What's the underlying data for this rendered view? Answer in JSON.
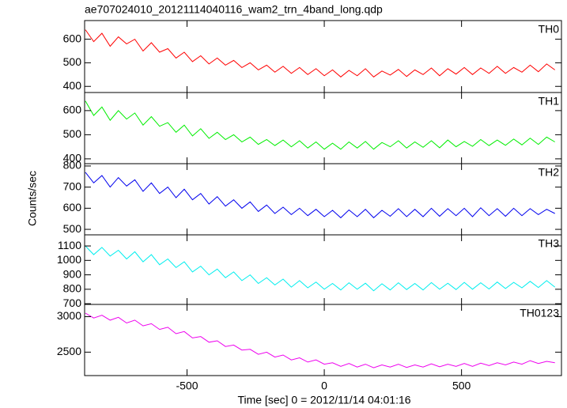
{
  "chart_data": {
    "type": "line",
    "title": "ae707024010_20121114040116_wam2_trn_4band_long.qdp",
    "x_label": "Time [sec] 0 = 2012/11/14 04:01:16",
    "y_label": "Counts/sec",
    "xlim": [
      -873,
      864
    ],
    "xticks": [
      -500,
      0,
      500
    ],
    "x": [
      -870,
      -840,
      -810,
      -780,
      -750,
      -720,
      -690,
      -660,
      -630,
      -600,
      -570,
      -540,
      -510,
      -480,
      -450,
      -420,
      -390,
      -360,
      -330,
      -300,
      -270,
      -240,
      -210,
      -180,
      -150,
      -120,
      -90,
      -60,
      -30,
      0,
      30,
      60,
      90,
      120,
      150,
      180,
      210,
      240,
      270,
      300,
      330,
      360,
      390,
      420,
      450,
      480,
      510,
      540,
      570,
      600,
      630,
      660,
      690,
      720,
      750,
      780,
      810,
      840
    ],
    "series": [
      {
        "name": "TH0",
        "color": "#ff0000",
        "ylim": [
          374,
          679
        ],
        "yticks": [
          400,
          500,
          600
        ],
        "values": [
          640,
          590,
          625,
          570,
          610,
          580,
          600,
          550,
          585,
          545,
          560,
          520,
          545,
          505,
          530,
          495,
          520,
          490,
          510,
          480,
          500,
          470,
          490,
          460,
          485,
          455,
          480,
          450,
          475,
          445,
          470,
          440,
          468,
          445,
          475,
          440,
          465,
          448,
          472,
          442,
          470,
          450,
          478,
          445,
          475,
          452,
          480,
          450,
          478,
          455,
          485,
          455,
          480,
          460,
          490,
          462,
          495,
          470
        ]
      },
      {
        "name": "TH1",
        "color": "#00ee00",
        "ylim": [
          380,
          675
        ],
        "yticks": [
          400,
          500,
          600
        ],
        "values": [
          640,
          580,
          615,
          560,
          600,
          565,
          590,
          540,
          575,
          535,
          550,
          510,
          540,
          495,
          525,
          485,
          510,
          480,
          500,
          470,
          490,
          460,
          480,
          455,
          478,
          450,
          475,
          445,
          470,
          440,
          465,
          440,
          470,
          445,
          472,
          440,
          468,
          450,
          475,
          445,
          470,
          448,
          475,
          446,
          478,
          450,
          472,
          452,
          480,
          455,
          478,
          456,
          482,
          458,
          486,
          460,
          490,
          470
        ]
      },
      {
        "name": "TH2",
        "color": "#0000ee",
        "ylim": [
          474,
          811
        ],
        "yticks": [
          500,
          600,
          700,
          800
        ],
        "values": [
          770,
          720,
          755,
          700,
          745,
          705,
          735,
          680,
          720,
          670,
          700,
          650,
          690,
          640,
          670,
          620,
          655,
          610,
          640,
          600,
          630,
          585,
          615,
          575,
          605,
          570,
          600,
          565,
          595,
          560,
          590,
          555,
          592,
          560,
          595,
          555,
          590,
          562,
          598,
          560,
          595,
          560,
          600,
          562,
          598,
          565,
          600,
          560,
          602,
          565,
          598,
          562,
          600,
          565,
          598,
          570,
          595,
          575
        ]
      },
      {
        "name": "TH3",
        "color": "#00eeee",
        "ylim": [
          695,
          1177
        ],
        "yticks": [
          700,
          800,
          900,
          1000,
          1100
        ],
        "values": [
          1100,
          1040,
          1090,
          1030,
          1070,
          1010,
          1060,
          990,
          1040,
          970,
          1010,
          950,
          990,
          920,
          960,
          900,
          940,
          880,
          920,
          860,
          900,
          840,
          880,
          830,
          870,
          815,
          860,
          810,
          850,
          800,
          840,
          795,
          845,
          800,
          842,
          790,
          838,
          795,
          845,
          798,
          840,
          795,
          846,
          800,
          842,
          798,
          848,
          800,
          845,
          802,
          850,
          805,
          848,
          810,
          855,
          812,
          860,
          815
        ]
      },
      {
        "name": "TH0123",
        "color": "#ee00ee",
        "ylim": [
          2170,
          3172
        ],
        "yticks": [
          2500,
          3000
        ],
        "values": [
          3050,
          2980,
          3020,
          2950,
          2990,
          2910,
          2950,
          2870,
          2900,
          2820,
          2850,
          2760,
          2790,
          2700,
          2720,
          2640,
          2660,
          2580,
          2600,
          2530,
          2540,
          2470,
          2500,
          2430,
          2460,
          2390,
          2420,
          2360,
          2390,
          2330,
          2350,
          2300,
          2340,
          2290,
          2330,
          2280,
          2320,
          2290,
          2330,
          2285,
          2320,
          2290,
          2335,
          2295,
          2330,
          2300,
          2340,
          2300,
          2345,
          2310,
          2350,
          2320,
          2360,
          2330,
          2380,
          2340,
          2370,
          2350
        ]
      }
    ]
  }
}
